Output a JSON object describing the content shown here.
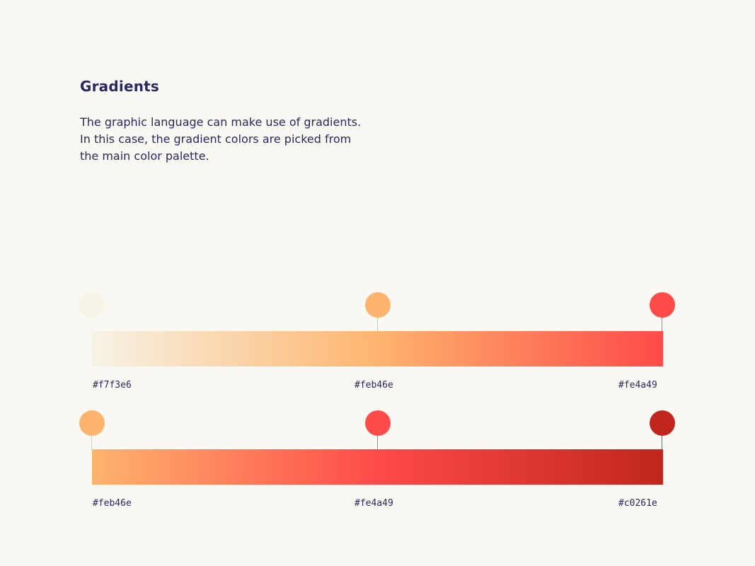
{
  "title": "Gradients",
  "description": [
    "The graphic language can make use of gradients.",
    "In this case, the gradient colors are picked from",
    "the main color palette."
  ],
  "gradients": [
    {
      "stops": [
        {
          "label": "#f7f3e6",
          "color": "#f7f3e6"
        },
        {
          "label": "#feb46e",
          "color": "#feb46e"
        },
        {
          "label": "#fe4a49",
          "color": "#fe4a49"
        }
      ]
    },
    {
      "stops": [
        {
          "label": "#feb46e",
          "color": "#feb46e"
        },
        {
          "label": "#fe4a49",
          "color": "#fe4a49"
        },
        {
          "label": "#c0261e",
          "color": "#c0261e"
        }
      ]
    }
  ],
  "colors": {
    "background": "#f9f8f3",
    "text": "#2a2860"
  }
}
